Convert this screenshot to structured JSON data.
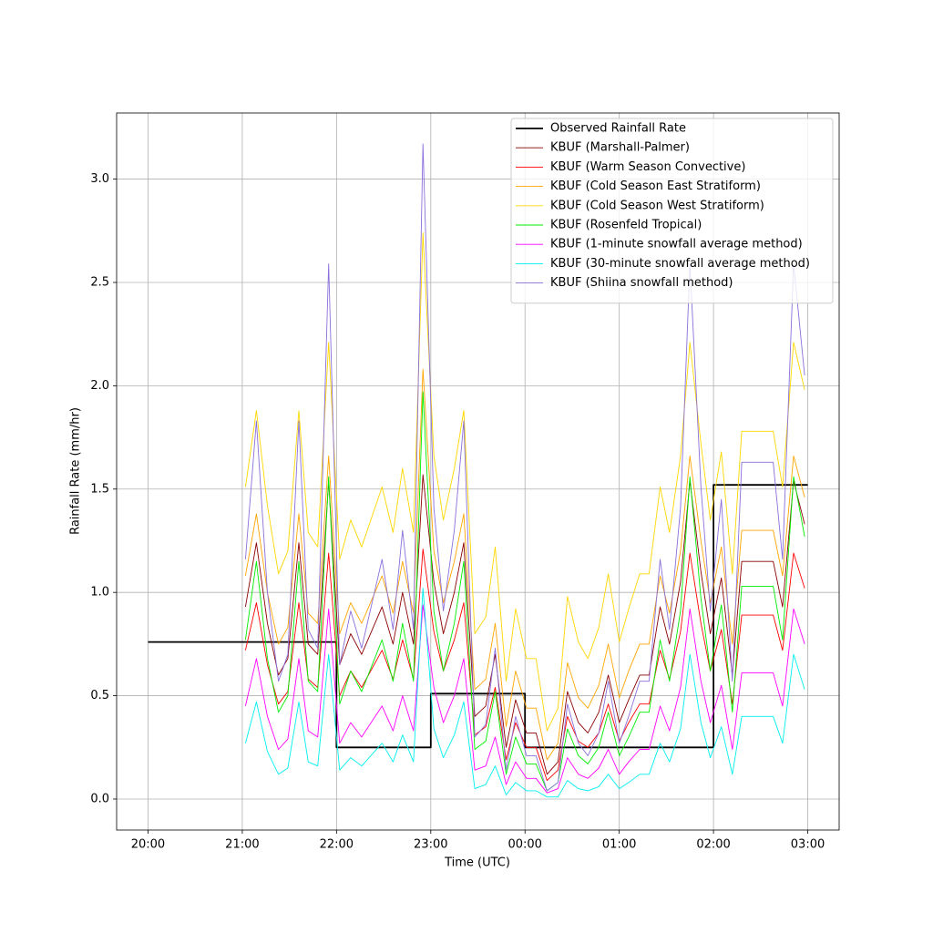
{
  "chart_data": {
    "type": "line",
    "xlabel": "Time (UTC)",
    "ylabel": "Rainfall Rate (mm/hr)",
    "xlim": [
      "19:40",
      "03:20"
    ],
    "xticks": [
      "20:00",
      "21:00",
      "22:00",
      "23:00",
      "00:00",
      "01:00",
      "02:00",
      "03:00"
    ],
    "ylim": [
      -0.15,
      3.32
    ],
    "yticks": [
      {
        "value": 0,
        "label": "0.0"
      },
      {
        "value": 0.5,
        "label": "0.5"
      },
      {
        "value": 1,
        "label": "1.0"
      },
      {
        "value": 1.5,
        "label": "1.5"
      },
      {
        "value": 2,
        "label": "2.0"
      },
      {
        "value": 2.5,
        "label": "2.5"
      },
      {
        "value": 3,
        "label": "3.0"
      }
    ],
    "grid": true,
    "legend": "upper right",
    "x": [
      "21:02",
      "21:09",
      "21:16",
      "21:23",
      "21:29",
      "21:36",
      "21:42",
      "21:48",
      "21:55",
      "22:02",
      "22:09",
      "22:16",
      "22:29",
      "22:36",
      "22:42",
      "22:49",
      "22:55",
      "23:02",
      "23:08",
      "23:15",
      "23:21",
      "23:28",
      "23:35",
      "23:41",
      "23:48",
      "23:54",
      "00:01",
      "00:07",
      "00:14",
      "00:21",
      "00:27",
      "00:34",
      "00:40",
      "00:47",
      "00:53",
      "01:00",
      "01:06",
      "01:13",
      "01:19",
      "01:26",
      "01:32",
      "01:39",
      "01:45",
      "01:52",
      "01:58",
      "02:05",
      "02:12",
      "02:18",
      "02:31",
      "02:38",
      "02:44",
      "02:51",
      "02:58"
    ],
    "series": [
      {
        "name": "Observed Rainfall Rate",
        "color": "#000000",
        "x": [
          "20:00",
          "22:00",
          "22:00",
          "23:00",
          "23:00",
          "00:00",
          "00:00",
          "02:00",
          "02:00",
          "03:00"
        ],
        "values": [
          0.76,
          0.76,
          0.25,
          0.25,
          0.51,
          0.51,
          0.25,
          0.25,
          1.52,
          1.52
        ]
      },
      {
        "name": "KBUF (Marshall-Palmer)",
        "color": "#8b0000",
        "values": [
          0.93,
          1.24,
          0.85,
          0.6,
          0.68,
          1.24,
          0.75,
          0.7,
          1.54,
          0.65,
          0.8,
          0.7,
          0.93,
          0.75,
          1.0,
          0.75,
          1.57,
          1.05,
          0.8,
          1.0,
          1.24,
          0.4,
          0.45,
          0.7,
          0.25,
          0.48,
          0.32,
          0.32,
          0.12,
          0.18,
          0.52,
          0.37,
          0.32,
          0.42,
          0.6,
          0.37,
          0.48,
          0.6,
          0.6,
          0.93,
          0.75,
          1.05,
          1.54,
          1.1,
          0.8,
          1.07,
          0.6,
          1.15,
          1.15,
          1.15,
          0.93,
          1.54,
          1.33
        ]
      },
      {
        "name": "KBUF (Warm Season Convective)",
        "color": "#ff0000",
        "values": [
          0.72,
          0.95,
          0.65,
          0.46,
          0.52,
          0.95,
          0.58,
          0.54,
          1.19,
          0.5,
          0.62,
          0.54,
          0.72,
          0.58,
          0.77,
          0.58,
          1.21,
          0.81,
          0.62,
          0.77,
          0.95,
          0.31,
          0.35,
          0.54,
          0.19,
          0.37,
          0.25,
          0.25,
          0.09,
          0.14,
          0.4,
          0.28,
          0.25,
          0.32,
          0.46,
          0.28,
          0.37,
          0.46,
          0.46,
          0.72,
          0.58,
          0.81,
          1.19,
          0.85,
          0.62,
          0.82,
          0.46,
          0.89,
          0.89,
          0.89,
          0.72,
          1.19,
          1.02
        ]
      },
      {
        "name": "KBUF (Cold Season East Stratiform)",
        "color": "#ffa500",
        "values": [
          1.08,
          1.38,
          1.0,
          0.75,
          0.83,
          1.38,
          0.9,
          0.85,
          1.66,
          0.8,
          0.95,
          0.85,
          1.08,
          0.9,
          1.15,
          0.9,
          2.08,
          1.2,
          0.95,
          1.15,
          1.38,
          0.53,
          0.58,
          0.85,
          0.35,
          0.62,
          0.44,
          0.44,
          0.19,
          0.27,
          0.66,
          0.49,
          0.44,
          0.55,
          0.75,
          0.49,
          0.62,
          0.75,
          0.75,
          1.08,
          0.9,
          1.2,
          1.66,
          1.25,
          0.95,
          1.22,
          0.75,
          1.3,
          1.3,
          1.3,
          1.08,
          1.66,
          1.46
        ]
      },
      {
        "name": "KBUF (Cold Season West Stratiform)",
        "color": "#ffd700",
        "values": [
          1.51,
          1.88,
          1.42,
          1.09,
          1.2,
          1.88,
          1.29,
          1.22,
          2.21,
          1.16,
          1.35,
          1.22,
          1.51,
          1.29,
          1.6,
          1.29,
          2.74,
          1.66,
          1.35,
          1.6,
          1.88,
          0.8,
          0.88,
          1.22,
          0.57,
          0.92,
          0.68,
          0.68,
          0.33,
          0.44,
          0.98,
          0.76,
          0.68,
          0.83,
          1.09,
          0.76,
          0.92,
          1.09,
          1.09,
          1.51,
          1.29,
          1.66,
          2.21,
          1.72,
          1.35,
          1.68,
          1.09,
          1.78,
          1.78,
          1.78,
          1.51,
          2.21,
          1.98
        ]
      },
      {
        "name": "KBUF (Rosenfeld Tropical)",
        "color": "#00ee00",
        "values": [
          0.77,
          1.15,
          0.68,
          0.42,
          0.5,
          1.15,
          0.57,
          0.52,
          1.56,
          0.46,
          0.62,
          0.52,
          0.77,
          0.57,
          0.85,
          0.57,
          1.97,
          0.91,
          0.62,
          0.85,
          1.15,
          0.24,
          0.28,
          0.52,
          0.12,
          0.3,
          0.17,
          0.17,
          0.04,
          0.08,
          0.34,
          0.21,
          0.17,
          0.25,
          0.42,
          0.21,
          0.3,
          0.42,
          0.42,
          0.77,
          0.57,
          0.91,
          1.56,
          0.97,
          0.62,
          0.94,
          0.42,
          1.03,
          1.03,
          1.03,
          0.77,
          1.56,
          1.27
        ]
      },
      {
        "name": "KBUF (1-minute snowfall average method)",
        "color": "#ff00ff",
        "values": [
          0.45,
          0.68,
          0.4,
          0.24,
          0.29,
          0.68,
          0.33,
          0.3,
          0.92,
          0.27,
          0.37,
          0.3,
          0.45,
          0.33,
          0.5,
          0.33,
          0.94,
          0.54,
          0.37,
          0.5,
          0.68,
          0.14,
          0.16,
          0.3,
          0.07,
          0.18,
          0.1,
          0.1,
          0.03,
          0.05,
          0.2,
          0.12,
          0.1,
          0.15,
          0.24,
          0.12,
          0.18,
          0.24,
          0.24,
          0.45,
          0.33,
          0.54,
          0.92,
          0.57,
          0.37,
          0.55,
          0.24,
          0.61,
          0.61,
          0.61,
          0.45,
          0.92,
          0.75
        ]
      },
      {
        "name": "KBUF (30-minute snowfall average method)",
        "color": "#00eeee",
        "values": [
          0.27,
          0.47,
          0.23,
          0.12,
          0.15,
          0.47,
          0.18,
          0.16,
          0.7,
          0.14,
          0.2,
          0.16,
          0.27,
          0.18,
          0.31,
          0.18,
          1.02,
          0.34,
          0.2,
          0.31,
          0.47,
          0.05,
          0.07,
          0.16,
          0.02,
          0.08,
          0.04,
          0.04,
          0.01,
          0.01,
          0.09,
          0.05,
          0.04,
          0.06,
          0.12,
          0.05,
          0.08,
          0.12,
          0.12,
          0.27,
          0.18,
          0.34,
          0.7,
          0.37,
          0.2,
          0.35,
          0.12,
          0.4,
          0.4,
          0.4,
          0.27,
          0.7,
          0.53
        ]
      },
      {
        "name": "KBUF (Shiina snowfall method)",
        "color": "#8a6fdb",
        "values": [
          1.16,
          1.83,
          1.0,
          0.57,
          0.7,
          1.83,
          0.82,
          0.73,
          2.59,
          0.65,
          0.91,
          0.73,
          1.16,
          0.82,
          1.3,
          0.82,
          3.17,
          1.41,
          0.91,
          1.3,
          1.83,
          0.3,
          0.36,
          0.73,
          0.14,
          0.4,
          0.21,
          0.21,
          0.04,
          0.08,
          0.46,
          0.27,
          0.21,
          0.32,
          0.57,
          0.27,
          0.4,
          0.57,
          0.57,
          1.16,
          0.82,
          1.41,
          2.59,
          1.51,
          0.91,
          1.45,
          0.57,
          1.63,
          1.63,
          1.63,
          1.16,
          2.59,
          2.05
        ]
      }
    ]
  }
}
